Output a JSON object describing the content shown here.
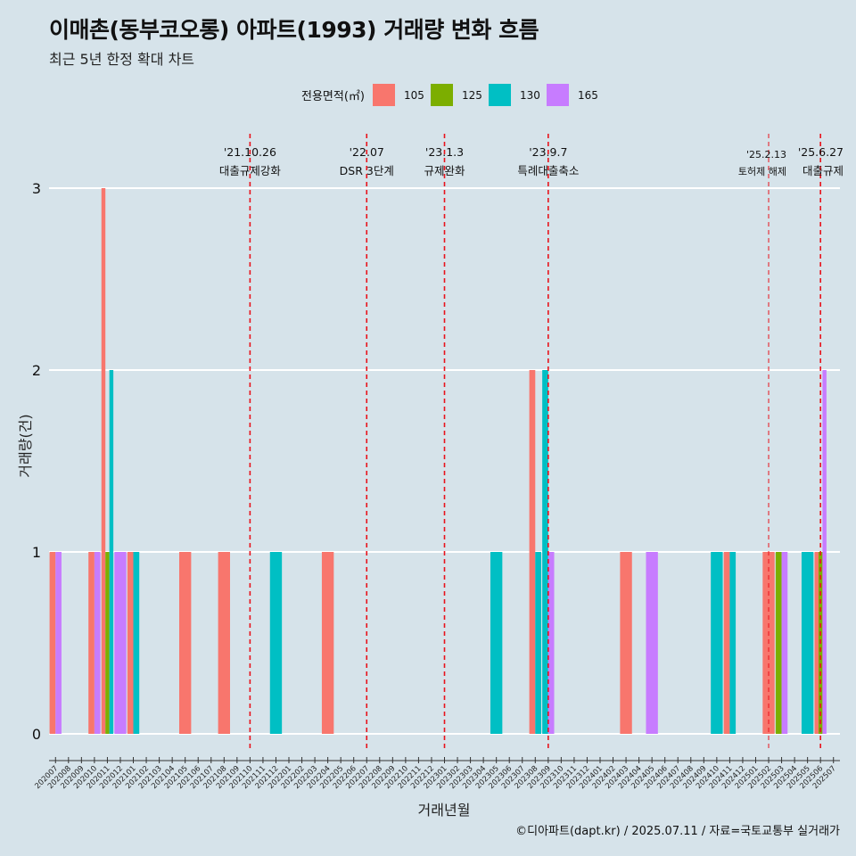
{
  "title": "이매촌(동부코오롱) 아파트(1993) 거래량 변화 흐름",
  "subtitle": "최근 5년 한정 확대 차트",
  "caption": "©디아파트(dapt.kr) / 2025.07.11 / 자료=국토교통부 실거래가",
  "chart_data": {
    "type": "bar",
    "xlabel": "거래년월",
    "ylabel": "거래량(건)",
    "ylim": [
      0,
      3
    ],
    "y_ticks": [
      "0",
      "1",
      "2",
      "3"
    ],
    "grid": true,
    "legend": {
      "title": "전용면적(㎡)",
      "position": "top",
      "items": [
        {
          "name": "105",
          "color": "#F8766D"
        },
        {
          "name": "125",
          "color": "#7CAE00"
        },
        {
          "name": "130",
          "color": "#00BFC4"
        },
        {
          "name": "165",
          "color": "#C77CFF"
        }
      ]
    },
    "categories": [
      "202007",
      "202008",
      "202009",
      "202010",
      "202011",
      "202012",
      "202101",
      "202102",
      "202103",
      "202104",
      "202105",
      "202106",
      "202107",
      "202108",
      "202109",
      "202110",
      "202111",
      "202112",
      "202201",
      "202202",
      "202203",
      "202204",
      "202205",
      "202206",
      "202207",
      "202208",
      "202209",
      "202210",
      "202211",
      "202212",
      "202301",
      "202302",
      "202303",
      "202304",
      "202305",
      "202306",
      "202307",
      "202308",
      "202309",
      "202310",
      "202311",
      "202312",
      "202401",
      "202402",
      "202403",
      "202404",
      "202405",
      "202406",
      "202407",
      "202408",
      "202409",
      "202410",
      "202411",
      "202412",
      "202501",
      "202502",
      "202503",
      "202504",
      "202505",
      "202506",
      "202507"
    ],
    "transactions": [
      {
        "month": "202007",
        "values": {
          "105": 1,
          "165": 1
        }
      },
      {
        "month": "202010",
        "values": {
          "105": 1,
          "165": 1
        }
      },
      {
        "month": "202011",
        "values": {
          "105": 3,
          "125": 1,
          "130": 2
        }
      },
      {
        "month": "202012",
        "values": {
          "165": 1
        }
      },
      {
        "month": "202101",
        "values": {
          "105": 1,
          "130": 1
        }
      },
      {
        "month": "202105",
        "values": {
          "105": 1
        }
      },
      {
        "month": "202108",
        "values": {
          "105": 1
        }
      },
      {
        "month": "202112",
        "values": {
          "130": 1
        }
      },
      {
        "month": "202204",
        "values": {
          "105": 1
        }
      },
      {
        "month": "202305",
        "values": {
          "130": 1
        }
      },
      {
        "month": "202308",
        "values": {
          "105": 2,
          "130": 1
        }
      },
      {
        "month": "202309",
        "values": {
          "130": 2,
          "165": 1
        }
      },
      {
        "month": "202403",
        "values": {
          "105": 1
        }
      },
      {
        "month": "202405",
        "values": {
          "165": 1
        }
      },
      {
        "month": "202410",
        "values": {
          "130": 1
        }
      },
      {
        "month": "202411",
        "values": {
          "105": 1,
          "130": 1
        }
      },
      {
        "month": "202502",
        "values": {
          "105": 1
        }
      },
      {
        "month": "202503",
        "values": {
          "125": 1,
          "165": 1
        }
      },
      {
        "month": "202505",
        "values": {
          "130": 1
        }
      },
      {
        "month": "202506",
        "values": {
          "105": 1,
          "125": 1,
          "165": 2
        }
      }
    ],
    "events": [
      {
        "date": "'21.10.26",
        "label": "대출규제강화",
        "month": "202110"
      },
      {
        "date": "'22.07",
        "label": "DSR 3단계",
        "month": "202207"
      },
      {
        "date": "'23.1.3",
        "label": "규제완화",
        "month": "202301"
      },
      {
        "date": "'23.9.7",
        "label": "특례대출축소",
        "month": "202309"
      },
      {
        "date": "'25.2.13",
        "label": "토허제 해제",
        "month": "202502"
      },
      {
        "date": "'25.6.27",
        "label": "대출규제",
        "month": "202506"
      }
    ]
  }
}
